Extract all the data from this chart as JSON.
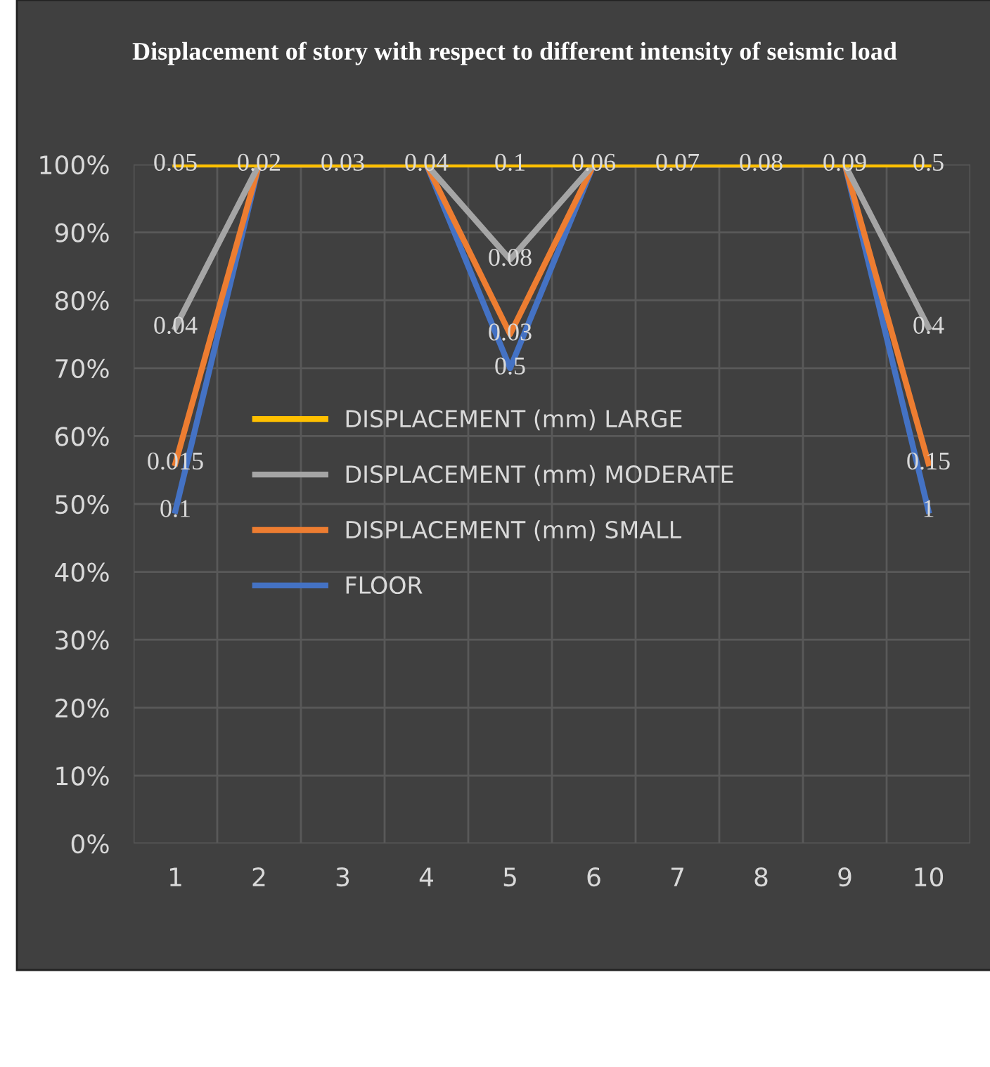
{
  "chart_data": {
    "type": "line",
    "title": "Displacement of story with respect to different intensity of seismic load",
    "categories": [
      "1",
      "2",
      "3",
      "4",
      "5",
      "6",
      "7",
      "8",
      "9",
      "10"
    ],
    "series": [
      {
        "name": "DISPLACEMENT (mm) LARGE",
        "color": "#ffc000",
        "values": [
          100,
          100,
          100,
          100,
          100,
          100,
          100,
          100,
          100,
          100
        ]
      },
      {
        "name": "DISPLACEMENT (mm) MODERATE",
        "color": "#a5a5a5",
        "values": [
          76,
          100,
          100,
          100,
          86,
          100,
          100,
          100,
          100,
          76
        ]
      },
      {
        "name": "DISPLACEMENT (mm) SMALL",
        "color": "#ed7d31",
        "values": [
          56,
          100,
          100,
          100,
          75,
          100,
          100,
          100,
          100,
          56
        ]
      },
      {
        "name": "FLOOR",
        "color": "#4472c4",
        "values": [
          49,
          100,
          100,
          100,
          70,
          100,
          100,
          100,
          100,
          49
        ]
      }
    ],
    "annotations": [
      {
        "text": "0.05",
        "x": "1",
        "y": 100
      },
      {
        "text": "0.02",
        "x": "2",
        "y": 100
      },
      {
        "text": "0.03",
        "x": "3",
        "y": 100
      },
      {
        "text": "0.04",
        "x": "4",
        "y": 100
      },
      {
        "text": "0.1",
        "x": "5",
        "y": 100
      },
      {
        "text": "0.06",
        "x": "6",
        "y": 100
      },
      {
        "text": "0.07",
        "x": "7",
        "y": 100
      },
      {
        "text": "0.08",
        "x": "8",
        "y": 100
      },
      {
        "text": "0.09",
        "x": "9",
        "y": 100
      },
      {
        "text": "0.5",
        "x": "10",
        "y": 100
      },
      {
        "text": "0.04",
        "x": "1",
        "y": 76
      },
      {
        "text": "0.08",
        "x": "5",
        "y": 86
      },
      {
        "text": "0.4",
        "x": "10",
        "y": 76
      },
      {
        "text": "0.015",
        "x": "1",
        "y": 56
      },
      {
        "text": "0.03",
        "x": "5",
        "y": 75
      },
      {
        "text": "0.15",
        "x": "10",
        "y": 56
      },
      {
        "text": "0.1",
        "x": "1",
        "y": 49
      },
      {
        "text": "0.5",
        "x": "5",
        "y": 70
      },
      {
        "text": "1",
        "x": "10",
        "y": 49
      }
    ],
    "ylim": [
      0,
      100
    ],
    "yticks": [
      {
        "value": 0,
        "label": "0%"
      },
      {
        "value": 10,
        "label": "10%"
      },
      {
        "value": 20,
        "label": "20%"
      },
      {
        "value": 30,
        "label": "30%"
      },
      {
        "value": 40,
        "label": "40%"
      },
      {
        "value": 50,
        "label": "50%"
      },
      {
        "value": 60,
        "label": "60%"
      },
      {
        "value": 70,
        "label": "70%"
      },
      {
        "value": 80,
        "label": "80%"
      },
      {
        "value": 90,
        "label": "90%"
      },
      {
        "value": 100,
        "label": "100%"
      }
    ],
    "grid": true,
    "legend": "left",
    "marker": "none",
    "line_style": "solid"
  }
}
